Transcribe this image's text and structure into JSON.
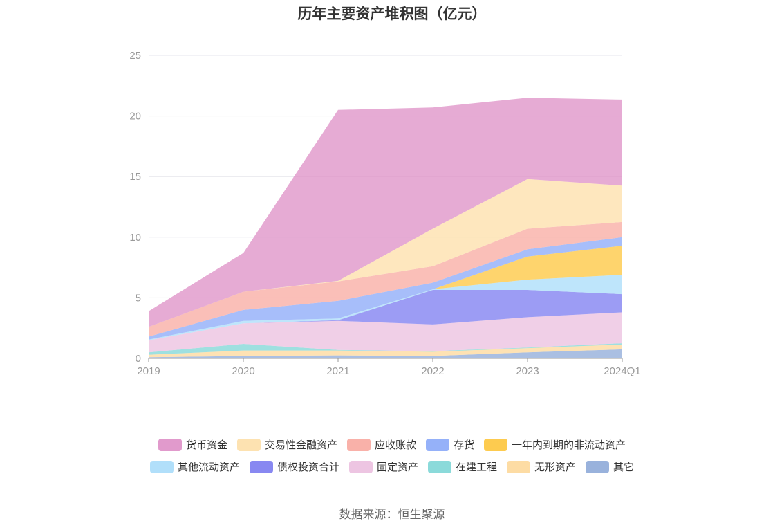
{
  "title": "历年主要资产堆积图（亿元）",
  "source": "数据来源：恒生聚源",
  "chart_data": {
    "type": "area",
    "stacked": true,
    "categories": [
      "2019",
      "2020",
      "2021",
      "2022",
      "2023",
      "2024Q1"
    ],
    "ylim": [
      0,
      25
    ],
    "yticks": [
      0,
      5,
      10,
      15,
      20,
      25
    ],
    "grid": true,
    "legend_position": "bottom",
    "series": [
      {
        "name": "其它",
        "color": "#8eaad8",
        "values": [
          0.1,
          0.2,
          0.25,
          0.2,
          0.5,
          0.75
        ]
      },
      {
        "name": "无形资产",
        "color": "#fdd89a",
        "values": [
          0.2,
          0.45,
          0.4,
          0.35,
          0.35,
          0.4
        ]
      },
      {
        "name": "在建工程",
        "color": "#7ed6d6",
        "values": [
          0.2,
          0.55,
          0.05,
          0.05,
          0.05,
          0.1
        ]
      },
      {
        "name": "固定资产",
        "color": "#ebbfdf",
        "values": [
          1.0,
          1.7,
          2.4,
          2.2,
          2.5,
          2.55
        ]
      },
      {
        "name": "债权投资合计",
        "color": "#7b7bf0",
        "values": [
          0,
          0,
          0.05,
          2.85,
          2.25,
          1.5
        ]
      },
      {
        "name": "其他流动资产",
        "color": "#a8dcfa",
        "values": [
          0.05,
          0.2,
          0.15,
          0.05,
          0.85,
          1.6
        ]
      },
      {
        "name": "一年内到期的非流动资产",
        "color": "#fdc53c",
        "values": [
          0,
          0,
          0,
          0,
          1.9,
          2.4
        ]
      },
      {
        "name": "存货",
        "color": "#8aa8f8",
        "values": [
          0.25,
          0.9,
          1.45,
          0.55,
          0.6,
          0.7
        ]
      },
      {
        "name": "应收账款",
        "color": "#f8a9a0",
        "values": [
          0.8,
          1.5,
          1.6,
          1.35,
          1.7,
          1.25
        ]
      },
      {
        "name": "交易性金融资产",
        "color": "#fddfa8",
        "values": [
          0,
          0,
          0.05,
          3.1,
          4.1,
          3.0
        ]
      },
      {
        "name": "货币资金",
        "color": "#de8fc6",
        "values": [
          1.3,
          3.2,
          14.1,
          10.0,
          6.7,
          7.1
        ]
      }
    ],
    "legend_order": [
      "货币资金",
      "交易性金融资产",
      "应收账款",
      "存货",
      "一年内到期的非流动资产",
      "其他流动资产",
      "债权投资合计",
      "固定资产",
      "在建工程",
      "无形资产",
      "其它"
    ]
  }
}
